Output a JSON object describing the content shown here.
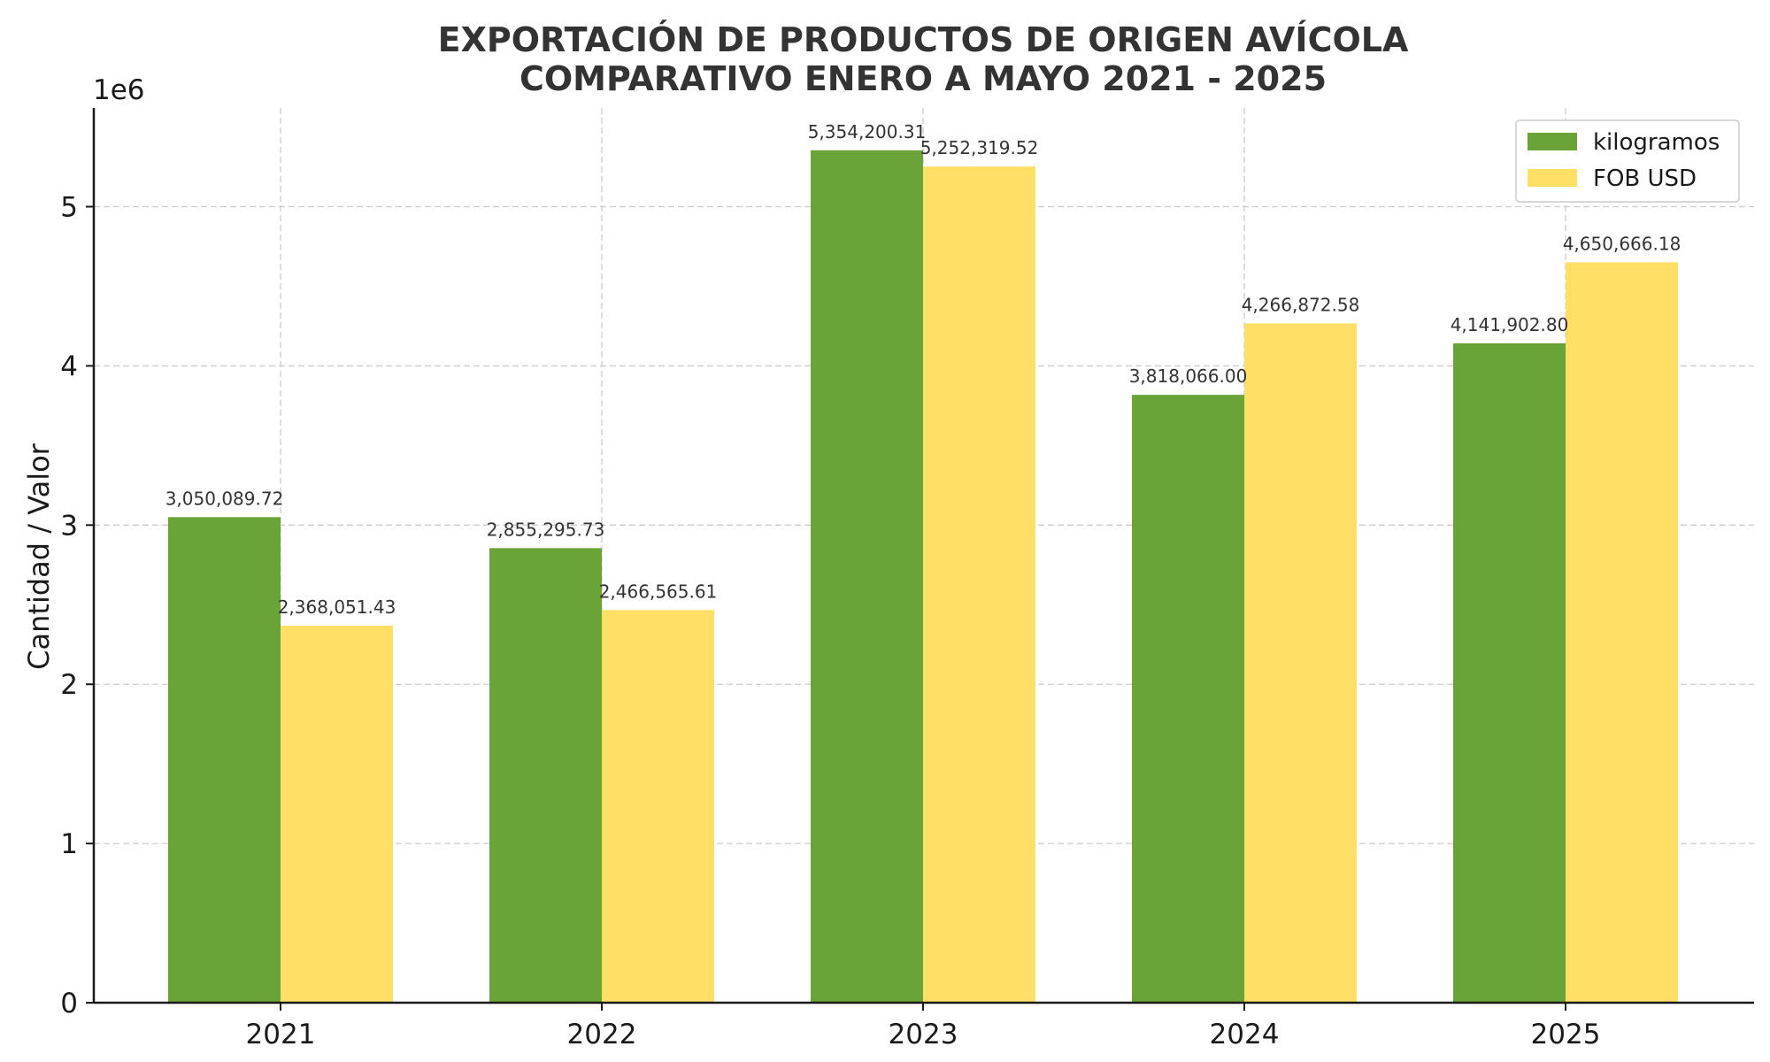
{
  "chart_data": {
    "type": "bar",
    "title": "EXPORTACIÓN DE PRODUCTOS DE ORIGEN AVÍCOLA",
    "subtitle": "COMPARATIVO ENERO A MAYO 2021 - 2025",
    "xlabel": "",
    "ylabel": "Cantidad / Valor",
    "y_scale_label": "1e6",
    "categories": [
      "2021",
      "2022",
      "2023",
      "2024",
      "2025"
    ],
    "series": [
      {
        "name": "kilogramos",
        "color": "#6aa338",
        "values": [
          3050089.72,
          2855295.73,
          5354200.31,
          3818066.0,
          4141902.8
        ],
        "labels": [
          "3,050,089.72",
          "2,855,295.73",
          "5,354,200.31",
          "3,818,066.00",
          "4,141,902.80"
        ]
      },
      {
        "name": "FOB USD",
        "color": "#ffdf66",
        "values": [
          2368051.43,
          2466565.61,
          5252319.52,
          4266872.58,
          4650666.18
        ],
        "labels": [
          "2,368,051.43",
          "2,466,565.61",
          "5,252,319.52",
          "4,266,872.58",
          "4,650,666.18"
        ]
      }
    ],
    "yticks": [
      0,
      1,
      2,
      3,
      4,
      5
    ],
    "ytick_labels": [
      "0",
      "1",
      "2",
      "3",
      "4",
      "5"
    ],
    "ylim": [
      0,
      5620000
    ],
    "grid": true,
    "legend_position": "top-right"
  }
}
